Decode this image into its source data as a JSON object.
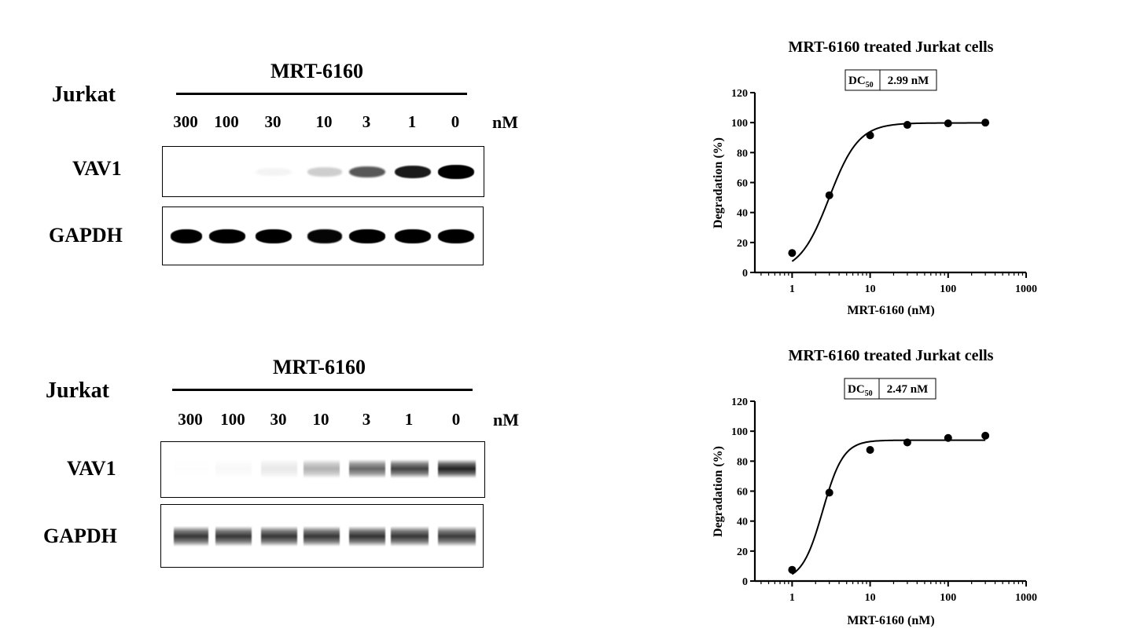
{
  "blots": [
    {
      "cell_line": "Jurkat",
      "compound": "MRT-6160",
      "concentrations": [
        "300",
        "100",
        "30",
        "10",
        "3",
        "1",
        "0"
      ],
      "unit": "nM",
      "rows": [
        {
          "protein": "VAV1",
          "intensity": [
            0.0,
            0.0,
            0.04,
            0.18,
            0.62,
            0.85,
            1.0
          ]
        },
        {
          "protein": "GAPDH",
          "intensity": [
            0.95,
            0.95,
            0.95,
            0.93,
            0.95,
            0.97,
            0.96
          ]
        }
      ]
    },
    {
      "cell_line": "Jurkat",
      "compound": "MRT-6160",
      "concentrations": [
        "300",
        "100",
        "30",
        "10",
        "3",
        "1",
        "0"
      ],
      "unit": "nM",
      "rows": [
        {
          "protein": "VAV1",
          "intensity": [
            0.01,
            0.03,
            0.1,
            0.35,
            0.68,
            0.85,
            1.0
          ]
        },
        {
          "protein": "GAPDH",
          "intensity": [
            0.9,
            0.9,
            0.9,
            0.9,
            0.92,
            0.9,
            0.88
          ]
        }
      ]
    }
  ],
  "chart_data": [
    {
      "type": "scatter",
      "title": "MRT-6160 treated Jurkat cells",
      "annotation": {
        "label": "DC",
        "sub": "50",
        "value": "2.99 nM"
      },
      "xlabel": "MRT-6160 (nM)",
      "ylabel": "Degradation (%)",
      "xscale": "log",
      "xlim": [
        0.333,
        1000
      ],
      "ylim": [
        0,
        120
      ],
      "xticks": [
        "1",
        "10",
        "100",
        "1000"
      ],
      "yticks": [
        "0",
        "20",
        "40",
        "60",
        "80",
        "100",
        "120"
      ],
      "x": [
        1,
        3,
        10,
        30,
        100,
        300
      ],
      "y": [
        13,
        51.5,
        91.5,
        98.5,
        99.5,
        100
      ],
      "fit": {
        "bottom": 0,
        "top": 99.8,
        "ec50": 2.99,
        "hill": 2.3
      }
    },
    {
      "type": "scatter",
      "title": "MRT-6160 treated Jurkat cells",
      "annotation": {
        "label": "DC",
        "sub": "50",
        "value": "2.47 nM"
      },
      "xlabel": "MRT-6160 (nM)",
      "ylabel": "Degradation (%)",
      "xscale": "log",
      "xlim": [
        0.333,
        1000
      ],
      "ylim": [
        0,
        120
      ],
      "xticks": [
        "1",
        "10",
        "100",
        "1000"
      ],
      "yticks": [
        "0",
        "20",
        "40",
        "60",
        "80",
        "100",
        "120"
      ],
      "x": [
        1,
        3,
        10,
        30,
        100,
        300
      ],
      "y": [
        7.5,
        59,
        87.5,
        92.5,
        95.5,
        97
      ],
      "fit": {
        "bottom": 0,
        "top": 94,
        "ec50": 2.47,
        "hill": 3.3
      }
    }
  ]
}
